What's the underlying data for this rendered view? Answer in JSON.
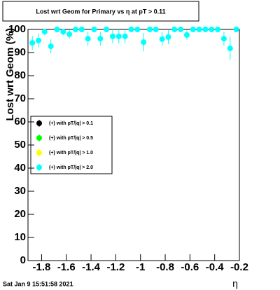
{
  "chart_data": {
    "type": "scatter",
    "title": "Lost wrt Geom for Primary vs   η at pT > 0.11",
    "y_label": "Lost wrt Geom (%)",
    "x_label": "η",
    "footer": "Sat Jan  9 15:51:58 2021",
    "xlim": [
      -1.91,
      -0.2
    ],
    "xticks": [
      -1.8,
      -1.6,
      -1.4,
      -1.2,
      -1,
      -0.8,
      -0.6,
      -0.4,
      -0.2
    ],
    "ylim": [
      0,
      100
    ],
    "yticks": [
      0,
      10,
      20,
      30,
      40,
      50,
      60,
      70,
      80,
      90,
      100
    ],
    "x": [
      -1.875,
      -1.825,
      -1.775,
      -1.725,
      -1.675,
      -1.625,
      -1.575,
      -1.525,
      -1.475,
      -1.425,
      -1.375,
      -1.325,
      -1.275,
      -1.225,
      -1.175,
      -1.125,
      -1.075,
      -1.025,
      -0.975,
      -0.925,
      -0.875,
      -0.825,
      -0.775,
      -0.725,
      -0.675,
      -0.625,
      -0.575,
      -0.525,
      -0.475,
      -0.425,
      -0.375,
      -0.325,
      -0.275,
      -0.225
    ],
    "series": [
      {
        "name": "(+) with pT/|q| > 0.1",
        "color": "#000000"
      },
      {
        "name": "(+) with pT/|q| > 0.5",
        "color": "#00ff00"
      },
      {
        "name": "(+) with pT/|q| > 1.0",
        "color": "#ffff00"
      },
      {
        "name": "(+) with pT/|q| > 2.0",
        "color": "#00ffff",
        "values": [
          94.2,
          95.2,
          99,
          92.7,
          100,
          99,
          97.9,
          100,
          100,
          96,
          100,
          96,
          100,
          97,
          97,
          97,
          100,
          100,
          94.5,
          100,
          100,
          95.8,
          96.7,
          100,
          100,
          97.6,
          100,
          100,
          100,
          100,
          100,
          96,
          91.8,
          100
        ],
        "errors": [
          3,
          3,
          1.5,
          3,
          0.5,
          1.5,
          2,
          0.5,
          0.5,
          3,
          0.5,
          3,
          0.5,
          3,
          3,
          3,
          0.5,
          0.5,
          4,
          0.5,
          0.5,
          3,
          3,
          0.5,
          0.5,
          2,
          0.5,
          0.5,
          0.5,
          0.5,
          0.5,
          3,
          5,
          0.5
        ]
      }
    ]
  }
}
